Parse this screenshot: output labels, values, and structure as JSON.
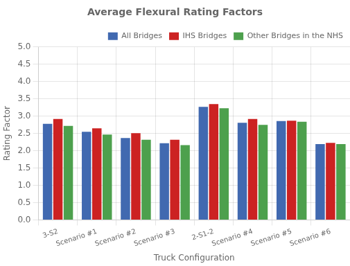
{
  "chart_data": {
    "type": "bar",
    "title": "Average Flexural Rating Factors",
    "xlabel": "Truck Configuration",
    "ylabel": "Rating Factor",
    "categories": [
      "3-S2",
      "Scenario #1",
      "Scenario #2",
      "Scenario #3",
      "2-S1-2",
      "Scenario #4",
      "Scenario #5",
      "Scenario #6"
    ],
    "series": [
      {
        "name": "All Bridges",
        "color": "#4169b0",
        "values": [
          2.78,
          2.55,
          2.37,
          2.22,
          3.27,
          2.81,
          2.86,
          2.19
        ]
      },
      {
        "name": "IHS Bridges",
        "color": "#cc2222",
        "values": [
          2.92,
          2.65,
          2.51,
          2.32,
          3.35,
          2.92,
          2.87,
          2.23
        ]
      },
      {
        "name": "Other Bridges in the NHS",
        "color": "#4da04d",
        "values": [
          2.72,
          2.47,
          2.32,
          2.16,
          3.23,
          2.75,
          2.84,
          2.19
        ]
      }
    ],
    "ylim": [
      0.0,
      5.0
    ],
    "yticks": [
      {
        "value": 0,
        "label": "0.0"
      },
      0.5,
      {
        "value": 1,
        "label": "1.0"
      },
      1.5,
      {
        "value": 2,
        "label": "2.0"
      },
      2.5,
      {
        "value": 3,
        "label": "3.0"
      },
      3.5,
      {
        "value": 4,
        "label": "4.0"
      },
      4.5,
      {
        "value": 5,
        "label": "5.0"
      }
    ],
    "grid": true,
    "legend": "upper right"
  }
}
